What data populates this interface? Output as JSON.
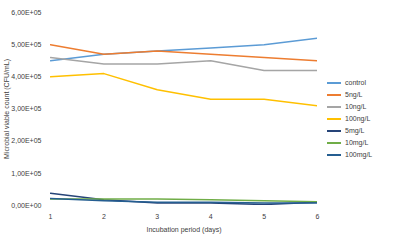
{
  "chart_data": {
    "type": "line",
    "x_label": "Incubation period (days)",
    "y_label": "Microbial viable count (CFU/mL)",
    "x": [
      1,
      2,
      3,
      4,
      5,
      6
    ],
    "xlim": [
      1,
      6
    ],
    "xticks": [
      1,
      2,
      3,
      4,
      5,
      6
    ],
    "ylim": [
      0,
      600000
    ],
    "yticks": [
      {
        "value": 0,
        "label": "0,00E+00"
      },
      {
        "value": 100000,
        "label": "1,00E+05"
      },
      {
        "value": 200000,
        "label": "2,00E+05"
      },
      {
        "value": 300000,
        "label": "3,00E+05"
      },
      {
        "value": 400000,
        "label": "4,00E+05"
      },
      {
        "value": 500000,
        "label": "5,00E+05"
      },
      {
        "value": 600000,
        "label": "6,00E+05"
      }
    ],
    "grid": false,
    "legend": "right",
    "series": [
      {
        "name": "control",
        "color": "#5b9bd5",
        "values": [
          450000,
          470000,
          480000,
          490000,
          500000,
          520000
        ]
      },
      {
        "name": "5ng/L",
        "color": "#ed7d31",
        "values": [
          500000,
          470000,
          480000,
          470000,
          460000,
          450000
        ]
      },
      {
        "name": "10ng/L",
        "color": "#a5a5a5",
        "values": [
          460000,
          440000,
          440000,
          450000,
          420000,
          420000
        ]
      },
      {
        "name": "100ng/L",
        "color": "#ffc000",
        "values": [
          400000,
          410000,
          360000,
          330000,
          330000,
          310000
        ]
      },
      {
        "name": "5mg/L",
        "color": "#264478",
        "values": [
          38000,
          18000,
          8000,
          8000,
          3000,
          10000
        ]
      },
      {
        "name": "10mg/L",
        "color": "#70ad47",
        "values": [
          20000,
          20000,
          20000,
          18000,
          15000,
          12000
        ]
      },
      {
        "name": "100mg/L",
        "color": "#255e91",
        "values": [
          22000,
          15000,
          10000,
          10000,
          8000,
          8000
        ]
      }
    ]
  }
}
